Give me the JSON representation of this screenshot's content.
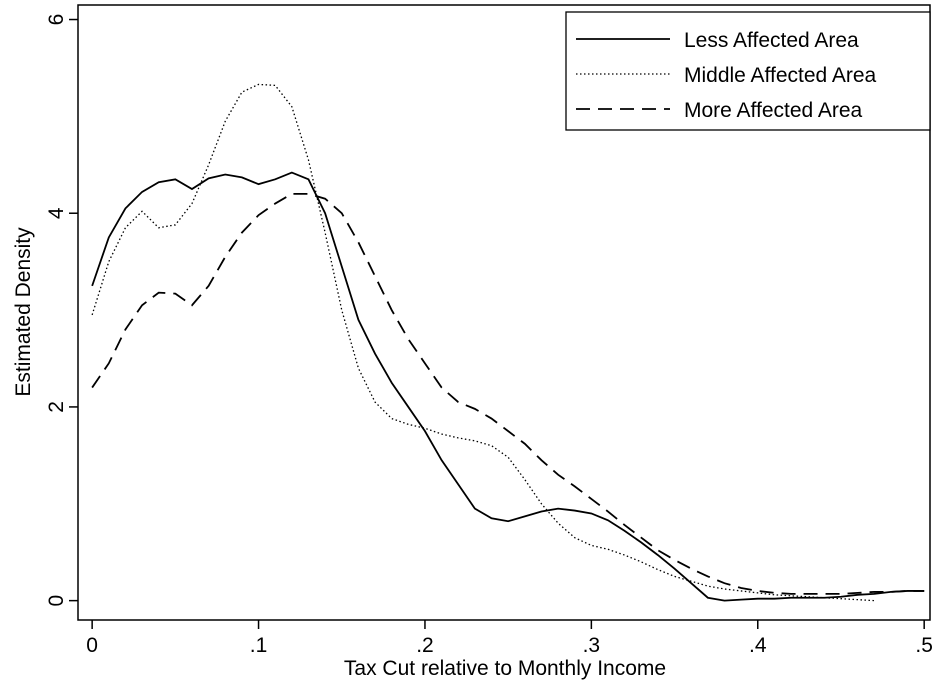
{
  "chart_data": {
    "type": "line",
    "x_label": "Tax Cut relative to Monthly Income",
    "y_label": "Estimated Density",
    "x": [
      0,
      0.01,
      0.02,
      0.03,
      0.04,
      0.05,
      0.06,
      0.07,
      0.08,
      0.09,
      0.1,
      0.11,
      0.12,
      0.13,
      0.14,
      0.15,
      0.16,
      0.17,
      0.18,
      0.19,
      0.2,
      0.21,
      0.22,
      0.23,
      0.24,
      0.25,
      0.26,
      0.27,
      0.28,
      0.29,
      0.3,
      0.31,
      0.32,
      0.33,
      0.34,
      0.35,
      0.36,
      0.37,
      0.38,
      0.39,
      0.4,
      0.41,
      0.42,
      0.43,
      0.44,
      0.45,
      0.46,
      0.47,
      0.48,
      0.49,
      0.5
    ],
    "series": [
      {
        "name": "Less Affected Area",
        "color": "#000000",
        "dash": "solid",
        "values": [
          3.25,
          3.75,
          4.05,
          4.22,
          4.32,
          4.35,
          4.25,
          4.36,
          4.4,
          4.37,
          4.3,
          4.35,
          4.42,
          4.35,
          4.0,
          3.45,
          2.9,
          2.55,
          2.25,
          2.0,
          1.75,
          1.45,
          1.2,
          0.95,
          0.85,
          0.82,
          0.87,
          0.92,
          0.95,
          0.93,
          0.9,
          0.83,
          0.72,
          0.6,
          0.47,
          0.33,
          0.18,
          0.03,
          0.0,
          0.01,
          0.02,
          0.02,
          0.03,
          0.03,
          0.03,
          0.04,
          0.06,
          0.07,
          0.09,
          0.1,
          0.1
        ]
      },
      {
        "name": "Middle Affected Area",
        "color": "#000000",
        "dash": "dotted",
        "values": [
          2.95,
          3.5,
          3.85,
          4.02,
          3.85,
          3.88,
          4.1,
          4.5,
          4.95,
          5.25,
          5.33,
          5.32,
          5.1,
          4.55,
          3.8,
          3.0,
          2.4,
          2.05,
          1.88,
          1.82,
          1.78,
          1.72,
          1.68,
          1.65,
          1.6,
          1.48,
          1.25,
          1.0,
          0.8,
          0.65,
          0.57,
          0.53,
          0.47,
          0.4,
          0.32,
          0.25,
          0.2,
          0.15,
          0.12,
          0.1,
          0.08,
          0.06,
          0.05,
          0.04,
          0.03,
          0.02,
          0.01,
          0.0,
          null,
          null,
          null
        ]
      },
      {
        "name": "More Affected Area",
        "color": "#000000",
        "dash": "dashed",
        "values": [
          2.2,
          2.45,
          2.8,
          3.05,
          3.18,
          3.17,
          3.05,
          3.25,
          3.55,
          3.8,
          3.98,
          4.1,
          4.2,
          4.2,
          4.15,
          4.0,
          3.7,
          3.35,
          3.0,
          2.7,
          2.45,
          2.2,
          2.05,
          1.98,
          1.88,
          1.75,
          1.62,
          1.45,
          1.3,
          1.18,
          1.05,
          0.92,
          0.78,
          0.65,
          0.52,
          0.42,
          0.33,
          0.25,
          0.18,
          0.13,
          0.1,
          0.08,
          0.07,
          0.07,
          0.07,
          0.07,
          0.08,
          0.09,
          0.09,
          0.1,
          0.1
        ]
      }
    ],
    "xlim": [
      -0.0085,
      0.5035
    ],
    "ylim": [
      -0.2,
      6.15
    ],
    "xticks": [
      0,
      {
        "value": 0.1,
        "label": ".1"
      },
      {
        "value": 0.2,
        "label": ".2"
      },
      {
        "value": 0.3,
        "label": ".3"
      },
      {
        "value": 0.4,
        "label": ".4"
      },
      {
        "value": 0.5,
        "label": ".5"
      }
    ],
    "yticks": [
      0,
      2,
      4,
      6
    ],
    "grid": false,
    "legend_position": "upper-right"
  }
}
